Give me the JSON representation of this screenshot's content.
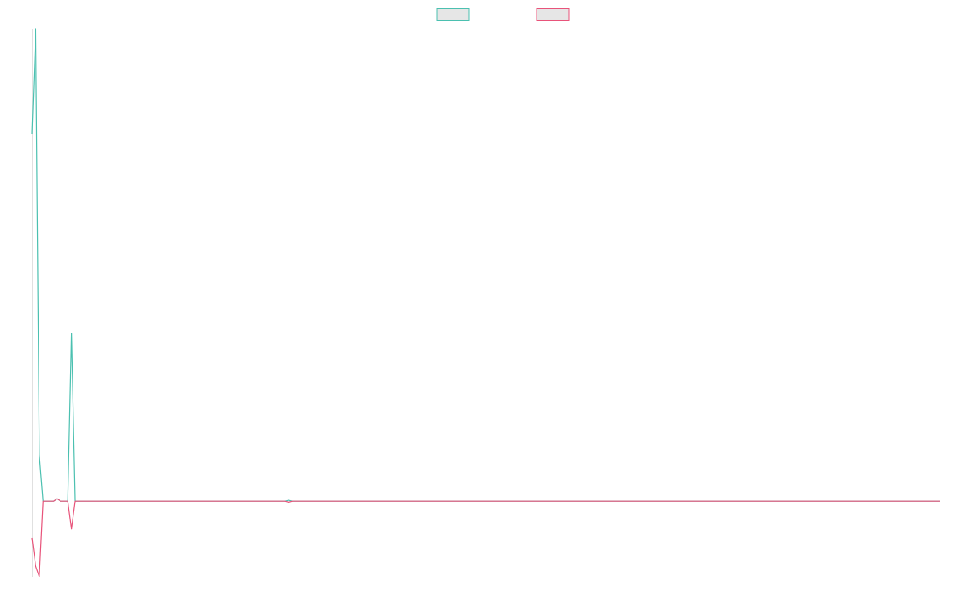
{
  "chart_data": {
    "type": "line",
    "x": [
      0,
      1,
      2,
      3,
      6,
      7,
      8,
      10,
      11,
      12,
      71,
      72,
      73,
      255
    ],
    "xlim": [
      0,
      255
    ],
    "ylim": [
      -16,
      100
    ],
    "legend": "top",
    "series": [
      {
        "color": "#4bc0b0",
        "values": [
          77.8,
          100,
          9.8,
          0,
          0,
          0.5,
          0,
          0,
          35.5,
          0,
          0,
          0.2,
          0,
          0
        ]
      },
      {
        "color": "#e8537a",
        "values": [
          -7.8,
          -13.8,
          -16,
          0,
          0,
          0.5,
          0,
          0,
          -5.9,
          0,
          0,
          -0.2,
          0,
          0
        ]
      }
    ]
  }
}
